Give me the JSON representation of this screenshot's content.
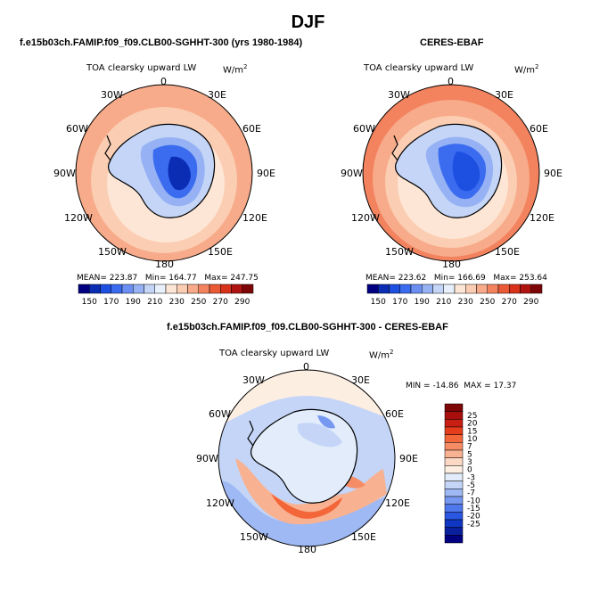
{
  "title": "DJF",
  "panels": [
    {
      "title": "f.e15b03ch.FAMIP.f09_f09.CLB00-SGHHT-300 (yrs 1980-1984)",
      "field": "TOA clearsky upward LW",
      "units": "W/m",
      "units_sup": "2",
      "lon_labels": [
        "0",
        "30E",
        "60E",
        "90E",
        "120E",
        "150E",
        "180",
        "150W",
        "120W",
        "90W",
        "60W",
        "30W"
      ],
      "stats": {
        "mean_label": "MEAN=",
        "mean": "223.87",
        "min_label": "Min=",
        "min": "164.77",
        "max_label": "Max=",
        "max": "247.75"
      }
    },
    {
      "title": "CERES-EBAF",
      "field": "TOA clearsky upward LW",
      "units": "W/m",
      "units_sup": "2",
      "lon_labels": [
        "0",
        "30E",
        "60E",
        "90E",
        "120E",
        "150E",
        "180",
        "150W",
        "120W",
        "90W",
        "60W",
        "30W"
      ],
      "stats": {
        "mean_label": "MEAN=",
        "mean": "223.62",
        "min_label": "Min=",
        "min": "166.69",
        "max_label": "Max=",
        "max": "253.64"
      }
    },
    {
      "title": "f.e15b03ch.FAMIP.f09_f09.CLB00-SGHHT-300 - CERES-EBAF",
      "field": "TOA clearsky upward LW",
      "units": "W/m",
      "units_sup": "2",
      "lon_labels": [
        "0",
        "30E",
        "60E",
        "90E",
        "120E",
        "150E",
        "180",
        "150W",
        "120W",
        "90W",
        "60W",
        "30W"
      ],
      "stats": {
        "min_label": "MIN =",
        "min": "-14.86",
        "max_label": "MAX =",
        "max": "17.37"
      }
    }
  ],
  "abs_colorbar": {
    "colors": [
      "#000080",
      "#0a2db4",
      "#1d4fe0",
      "#3b6cf0",
      "#6a8ef2",
      "#96b2f4",
      "#c4d5f7",
      "#e8f0fb",
      "#fde6d5",
      "#fbcdb2",
      "#f7ab8a",
      "#f3835f",
      "#ea5a36",
      "#d8321b",
      "#b01410",
      "#7d0707"
    ],
    "tick_labels": [
      "150",
      "170",
      "190",
      "210",
      "230",
      "250",
      "270",
      "290"
    ]
  },
  "diff_colorbar": {
    "colors": [
      "#7d0707",
      "#a80f0c",
      "#c91e12",
      "#e53d1c",
      "#f3663a",
      "#f58c66",
      "#f8b292",
      "#fbd9c4",
      "#fdeee2",
      "#e2ecfb",
      "#c4d5f7",
      "#9fb9f4",
      "#7698f0",
      "#4e78ec",
      "#2a57e2",
      "#1036c4",
      "#0a1f9c",
      "#000080"
    ],
    "tick_labels": [
      "25",
      "20",
      "15",
      "10",
      "7",
      "5",
      "3",
      "0",
      "-3",
      "-5",
      "-7",
      "-10",
      "-15",
      "-20",
      "-25"
    ]
  }
}
